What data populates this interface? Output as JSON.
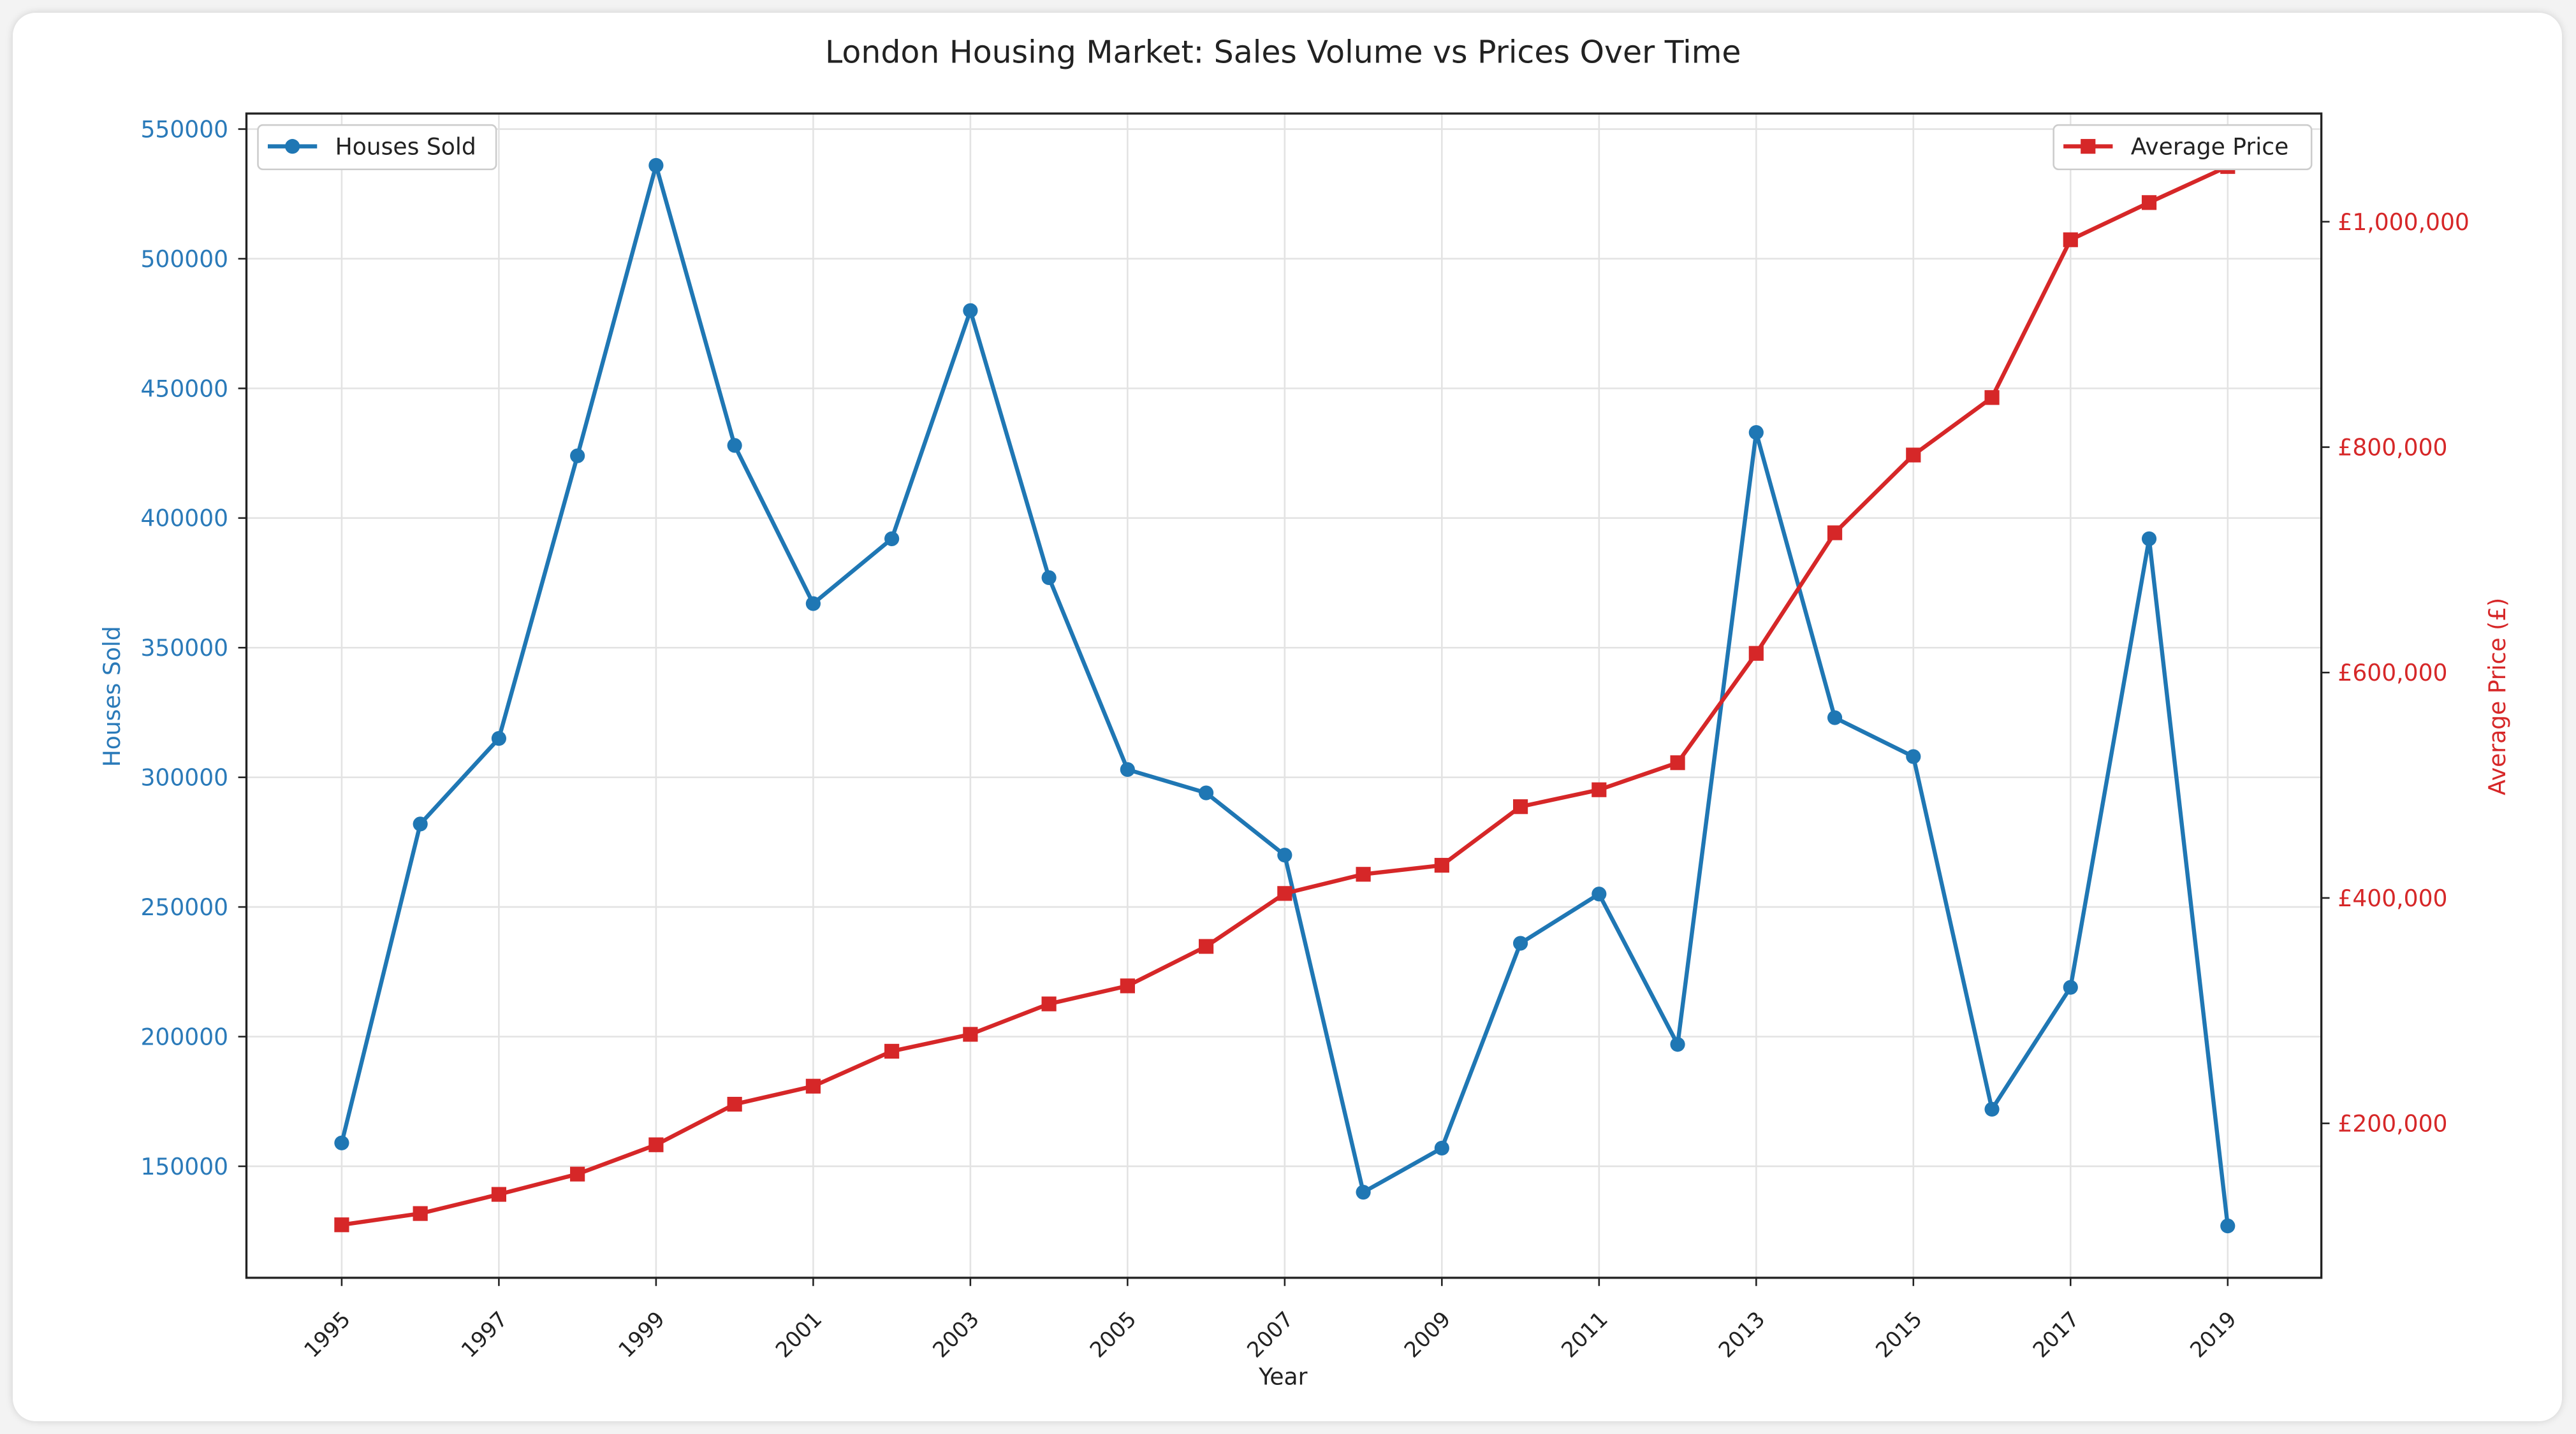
{
  "chart_data": {
    "type": "line",
    "title": "London Housing Market: Sales Volume vs Prices Over Time",
    "xlabel": "Year",
    "x": [
      1995,
      1996,
      1997,
      1998,
      1999,
      2000,
      2001,
      2002,
      2003,
      2004,
      2005,
      2006,
      2007,
      2008,
      2009,
      2010,
      2011,
      2012,
      2013,
      2014,
      2015,
      2016,
      2017,
      2018,
      2019
    ],
    "xticks": [
      "1995",
      "1997",
      "1999",
      "2001",
      "2003",
      "2005",
      "2007",
      "2009",
      "2011",
      "2013",
      "2015",
      "2017",
      "2019"
    ],
    "grid": true,
    "y_left": {
      "label": "Houses Sold",
      "lim": [
        107000,
        556000
      ],
      "ticks": [
        "150000",
        "200000",
        "250000",
        "300000",
        "350000",
        "400000",
        "450000",
        "500000",
        "550000"
      ],
      "tick_values": [
        150000,
        200000,
        250000,
        300000,
        350000,
        400000,
        450000,
        500000,
        550000
      ],
      "color": "#2a7ab9"
    },
    "y_right": {
      "label": "Average Price (£)",
      "lim": [
        63000,
        1096000
      ],
      "ticks": [
        "£200,000",
        "£400,000",
        "£600,000",
        "£800,000",
        "£1,000,000"
      ],
      "tick_values": [
        200000,
        400000,
        600000,
        800000,
        1000000
      ],
      "color": "#d62728"
    },
    "series": [
      {
        "name": "Houses Sold",
        "axis": "left",
        "marker": "circle",
        "color": "#1f77b4",
        "legend": "top-left",
        "values": [
          159000,
          282000,
          315000,
          424000,
          536000,
          428000,
          367000,
          392000,
          480000,
          377000,
          303000,
          294000,
          270000,
          140000,
          157000,
          236000,
          255000,
          197000,
          433000,
          323000,
          308000,
          172000,
          219000,
          392000,
          127000
        ]
      },
      {
        "name": "Average Price",
        "axis": "right",
        "marker": "square",
        "color": "#d62728",
        "legend": "top-right",
        "values": [
          110000,
          120000,
          137000,
          155000,
          181000,
          217000,
          233000,
          264000,
          279000,
          306000,
          322000,
          357000,
          404000,
          421000,
          429000,
          481000,
          496000,
          520000,
          617000,
          724000,
          793000,
          844000,
          984000,
          1017000,
          1049000
        ]
      }
    ]
  }
}
